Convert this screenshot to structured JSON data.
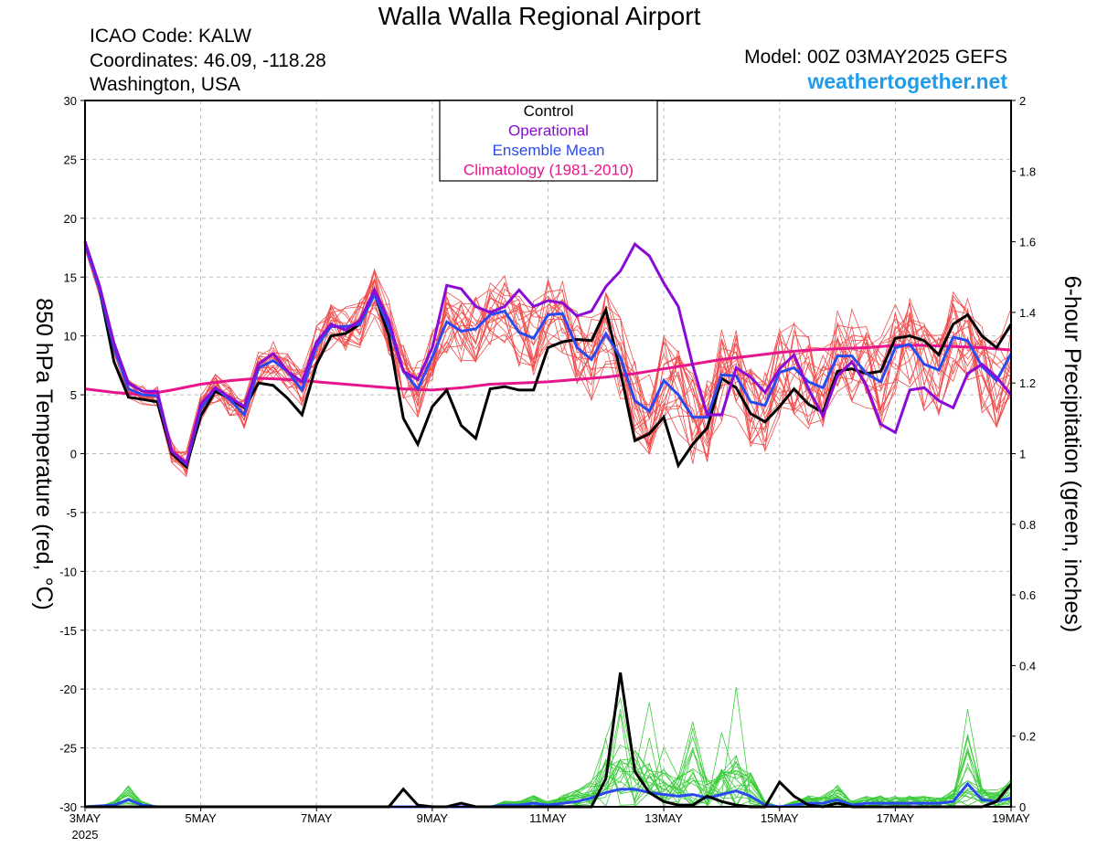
{
  "header": {
    "title": "Walla Walla Regional Airport",
    "icao": "ICAO Code: KALW",
    "coordinates": "Coordinates: 46.09, -118.28",
    "location": "Washington, USA",
    "model": "Model: 00Z 03MAY2025 GEFS",
    "brand": "weathertogether.net"
  },
  "chart_data": {
    "type": "line",
    "ylabel": "850 hPa Temperature (red, °C)",
    "y2label": "6-hour Precipitation (green, inches)",
    "ylim": [
      -30,
      30
    ],
    "y2lim": [
      0,
      2
    ],
    "xlim": [
      0,
      64
    ],
    "yticks": [
      30,
      25,
      20,
      15,
      10,
      5,
      0,
      -5,
      -10,
      -15,
      -20,
      -25,
      -30
    ],
    "y2ticks": [
      2,
      1.8,
      1.6,
      1.4,
      1.2,
      1,
      0.8,
      0.6,
      0.4,
      0.2,
      0
    ],
    "xticks": [
      {
        "x": 0,
        "label": "3MAY",
        "sub": "2025"
      },
      {
        "x": 8,
        "label": "5MAY"
      },
      {
        "x": 16,
        "label": "7MAY"
      },
      {
        "x": 24,
        "label": "9MAY"
      },
      {
        "x": 32,
        "label": "11MAY"
      },
      {
        "x": 40,
        "label": "13MAY"
      },
      {
        "x": 48,
        "label": "15MAY"
      },
      {
        "x": 56,
        "label": "17MAY"
      },
      {
        "x": 64,
        "label": "19MAY"
      }
    ],
    "grid": true,
    "legend": {
      "position": "top-center",
      "entries": [
        {
          "label": "Control",
          "color": "#000000"
        },
        {
          "label": "Operational",
          "color": "#8a0ad8"
        },
        {
          "label": "Ensemble Mean",
          "color": "#2a4af0"
        },
        {
          "label": "Climatology (1981-2010)",
          "color": "#e8148c"
        }
      ]
    },
    "colors": {
      "members": "#f04c4c",
      "precip_members": "#3ccc3c",
      "control": "#000000",
      "operational": "#8a0ad8",
      "mean": "#2a4af0",
      "climatology": "#e8148c"
    },
    "temperature": {
      "control": [
        [
          0,
          18
        ],
        [
          1,
          14
        ],
        [
          2,
          7.8
        ],
        [
          3,
          4.8
        ],
        [
          4,
          4.6
        ],
        [
          5,
          4.4
        ],
        [
          6,
          0
        ],
        [
          7,
          -1.1
        ],
        [
          8,
          3.2
        ],
        [
          9,
          5.3
        ],
        [
          10,
          4.7
        ],
        [
          11,
          3.9
        ],
        [
          12,
          6
        ],
        [
          13,
          5.8
        ],
        [
          14,
          4.7
        ],
        [
          15,
          3.3
        ],
        [
          16,
          7.6
        ],
        [
          17,
          10
        ],
        [
          18,
          10.2
        ],
        [
          19,
          11
        ],
        [
          20,
          13.6
        ],
        [
          21,
          10
        ],
        [
          22,
          3
        ],
        [
          23,
          0.8
        ],
        [
          24,
          4
        ],
        [
          25,
          5.4
        ],
        [
          26,
          2.4
        ],
        [
          27,
          1.3
        ],
        [
          28,
          5.5
        ],
        [
          29,
          5.7
        ],
        [
          30,
          5.4
        ],
        [
          31,
          5.4
        ],
        [
          32,
          9
        ],
        [
          33,
          9.5
        ],
        [
          34,
          9.7
        ],
        [
          35,
          9.6
        ],
        [
          36,
          12.2
        ],
        [
          37,
          7
        ],
        [
          38,
          1.1
        ],
        [
          39,
          1.7
        ],
        [
          40,
          3.1
        ],
        [
          41,
          -1
        ],
        [
          42,
          0.8
        ],
        [
          43,
          2.2
        ],
        [
          44,
          6.4
        ],
        [
          45,
          5.6
        ],
        [
          46,
          3.4
        ],
        [
          47,
          2.7
        ],
        [
          48,
          4
        ],
        [
          49,
          5.5
        ],
        [
          50,
          4.2
        ],
        [
          51,
          3.5
        ],
        [
          52,
          7
        ],
        [
          53,
          7.2
        ],
        [
          54,
          6.8
        ],
        [
          55,
          7
        ],
        [
          56,
          9.8
        ],
        [
          57,
          10
        ],
        [
          58,
          9.6
        ],
        [
          59,
          8.4
        ],
        [
          60,
          11
        ],
        [
          61,
          11.8
        ],
        [
          62,
          10
        ],
        [
          63,
          9
        ],
        [
          64,
          11
        ]
      ],
      "operational": [
        [
          0,
          18
        ],
        [
          1,
          14.3
        ],
        [
          2,
          9.4
        ],
        [
          3,
          6
        ],
        [
          4,
          5.3
        ],
        [
          5,
          5.3
        ],
        [
          6,
          0.2
        ],
        [
          7,
          -0.8
        ],
        [
          8,
          4.2
        ],
        [
          9,
          5.6
        ],
        [
          10,
          4.8
        ],
        [
          11,
          4
        ],
        [
          12,
          7.6
        ],
        [
          13,
          8.5
        ],
        [
          14,
          7
        ],
        [
          15,
          6.1
        ],
        [
          16,
          9.5
        ],
        [
          17,
          11
        ],
        [
          18,
          10.5
        ],
        [
          19,
          11.3
        ],
        [
          20,
          13.9
        ],
        [
          21,
          11.3
        ],
        [
          22,
          7
        ],
        [
          23,
          6.3
        ],
        [
          24,
          9
        ],
        [
          25,
          14.3
        ],
        [
          26,
          14
        ],
        [
          27,
          12.5
        ],
        [
          28,
          12
        ],
        [
          29,
          12.5
        ],
        [
          30,
          13.9
        ],
        [
          31,
          12.5
        ],
        [
          32,
          13
        ],
        [
          33,
          12.8
        ],
        [
          34,
          11.7
        ],
        [
          35,
          12.1
        ],
        [
          36,
          14.2
        ],
        [
          37,
          15.5
        ],
        [
          38,
          17.8
        ],
        [
          39,
          16.8
        ],
        [
          40,
          14.5
        ],
        [
          41,
          12.5
        ],
        [
          42,
          7.5
        ],
        [
          43,
          3.3
        ],
        [
          44,
          3.3
        ],
        [
          45,
          7.3
        ],
        [
          46,
          6.5
        ],
        [
          47,
          5.2
        ],
        [
          48,
          7.2
        ],
        [
          49,
          8.4
        ],
        [
          50,
          5.5
        ],
        [
          51,
          3.2
        ],
        [
          52,
          6.6
        ],
        [
          53,
          7.8
        ],
        [
          54,
          5.8
        ],
        [
          55,
          2.5
        ],
        [
          56,
          1.8
        ],
        [
          57,
          5.4
        ],
        [
          58,
          5.6
        ],
        [
          59,
          4.5
        ],
        [
          60,
          3.9
        ],
        [
          61,
          6.8
        ],
        [
          62,
          7.6
        ],
        [
          63,
          6.5
        ],
        [
          64,
          5
        ]
      ],
      "mean": [
        [
          0,
          17.8
        ],
        [
          1,
          14
        ],
        [
          2,
          9
        ],
        [
          3,
          5.5
        ],
        [
          4,
          5
        ],
        [
          5,
          4.9
        ],
        [
          6,
          0.2
        ],
        [
          7,
          -0.9
        ],
        [
          8,
          3.8
        ],
        [
          9,
          5.6
        ],
        [
          10,
          4.6
        ],
        [
          11,
          3.3
        ],
        [
          12,
          7.3
        ],
        [
          13,
          7.9
        ],
        [
          14,
          7
        ],
        [
          15,
          5.4
        ],
        [
          16,
          9.1
        ],
        [
          17,
          10.8
        ],
        [
          18,
          10.8
        ],
        [
          19,
          11
        ],
        [
          20,
          13.5
        ],
        [
          21,
          10.8
        ],
        [
          22,
          7
        ],
        [
          23,
          5.5
        ],
        [
          24,
          8.2
        ],
        [
          25,
          11.2
        ],
        [
          26,
          10.4
        ],
        [
          27,
          10.6
        ],
        [
          28,
          11.8
        ],
        [
          29,
          12.1
        ],
        [
          30,
          10.3
        ],
        [
          31,
          9.8
        ],
        [
          32,
          11.8
        ],
        [
          33,
          11.9
        ],
        [
          34,
          9
        ],
        [
          35,
          8
        ],
        [
          36,
          10.2
        ],
        [
          37,
          8.2
        ],
        [
          38,
          4.5
        ],
        [
          39,
          3.6
        ],
        [
          40,
          6.2
        ],
        [
          41,
          5
        ],
        [
          42,
          3.1
        ],
        [
          43,
          3.1
        ],
        [
          44,
          6.7
        ],
        [
          45,
          6.6
        ],
        [
          46,
          4.4
        ],
        [
          47,
          4.1
        ],
        [
          48,
          6.9
        ],
        [
          49,
          7.3
        ],
        [
          50,
          6.1
        ],
        [
          51,
          5.6
        ],
        [
          52,
          8.3
        ],
        [
          53,
          8.3
        ],
        [
          54,
          6.8
        ],
        [
          55,
          6.1
        ],
        [
          56,
          9
        ],
        [
          57,
          9.3
        ],
        [
          58,
          7.6
        ],
        [
          59,
          7.1
        ],
        [
          60,
          9.9
        ],
        [
          61,
          9.6
        ],
        [
          62,
          7.4
        ],
        [
          63,
          6.2
        ],
        [
          64,
          8.5
        ]
      ],
      "climatology": [
        [
          0,
          5.5
        ],
        [
          2,
          5.2
        ],
        [
          4,
          5.0
        ],
        [
          6,
          5.4
        ],
        [
          8,
          5.9
        ],
        [
          10,
          6.2
        ],
        [
          12,
          6.4
        ],
        [
          14,
          6.3
        ],
        [
          16,
          6.1
        ],
        [
          18,
          5.9
        ],
        [
          20,
          5.7
        ],
        [
          22,
          5.5
        ],
        [
          24,
          5.4
        ],
        [
          26,
          5.6
        ],
        [
          28,
          5.9
        ],
        [
          30,
          6.0
        ],
        [
          32,
          6.1
        ],
        [
          34,
          6.3
        ],
        [
          36,
          6.5
        ],
        [
          38,
          6.8
        ],
        [
          40,
          7.2
        ],
        [
          42,
          7.6
        ],
        [
          44,
          8.0
        ],
        [
          46,
          8.3
        ],
        [
          48,
          8.6
        ],
        [
          50,
          8.8
        ],
        [
          52,
          8.9
        ],
        [
          54,
          9.0
        ],
        [
          56,
          9.2
        ],
        [
          58,
          9.2
        ],
        [
          60,
          9.1
        ],
        [
          62,
          9.0
        ],
        [
          64,
          8.8
        ]
      ]
    },
    "precipitation": {
      "control": [
        [
          0,
          0
        ],
        [
          21,
          0
        ],
        [
          22,
          0.05
        ],
        [
          23,
          0.005
        ],
        [
          24,
          0
        ],
        [
          25,
          0
        ],
        [
          26,
          0.01
        ],
        [
          27,
          0
        ],
        [
          35,
          0
        ],
        [
          36,
          0.08
        ],
        [
          37,
          0.38
        ],
        [
          38,
          0.1
        ],
        [
          39,
          0.04
        ],
        [
          40,
          0.015
        ],
        [
          41,
          0.005
        ],
        [
          42,
          0.005
        ],
        [
          43,
          0.03
        ],
        [
          44,
          0.015
        ],
        [
          45,
          0.005
        ],
        [
          46,
          0
        ],
        [
          47,
          0
        ],
        [
          48,
          0.07
        ],
        [
          49,
          0.03
        ],
        [
          50,
          0.005
        ],
        [
          51,
          0
        ],
        [
          52,
          0.01
        ],
        [
          53,
          0
        ],
        [
          62,
          0
        ],
        [
          63,
          0.015
        ],
        [
          64,
          0.065
        ]
      ],
      "mean": [
        [
          0,
          0
        ],
        [
          2,
          0.005
        ],
        [
          3,
          0.02
        ],
        [
          4,
          0.005
        ],
        [
          5,
          0
        ],
        [
          28,
          0
        ],
        [
          29,
          0.005
        ],
        [
          30,
          0.005
        ],
        [
          31,
          0.01
        ],
        [
          32,
          0.005
        ],
        [
          33,
          0.01
        ],
        [
          34,
          0.015
        ],
        [
          35,
          0.025
        ],
        [
          36,
          0.04
        ],
        [
          37,
          0.05
        ],
        [
          38,
          0.05
        ],
        [
          39,
          0.04
        ],
        [
          40,
          0.035
        ],
        [
          41,
          0.03
        ],
        [
          42,
          0.035
        ],
        [
          43,
          0.025
        ],
        [
          44,
          0.035
        ],
        [
          45,
          0.045
        ],
        [
          46,
          0.03
        ],
        [
          47,
          0.005
        ],
        [
          48,
          0
        ],
        [
          49,
          0.005
        ],
        [
          50,
          0.01
        ],
        [
          51,
          0.01
        ],
        [
          52,
          0.02
        ],
        [
          53,
          0.005
        ],
        [
          54,
          0.01
        ],
        [
          55,
          0.01
        ],
        [
          56,
          0.01
        ],
        [
          57,
          0.01
        ],
        [
          58,
          0.01
        ],
        [
          59,
          0.01
        ],
        [
          60,
          0.015
        ],
        [
          61,
          0.065
        ],
        [
          62,
          0.02
        ],
        [
          63,
          0.015
        ],
        [
          64,
          0.025
        ]
      ]
    }
  }
}
